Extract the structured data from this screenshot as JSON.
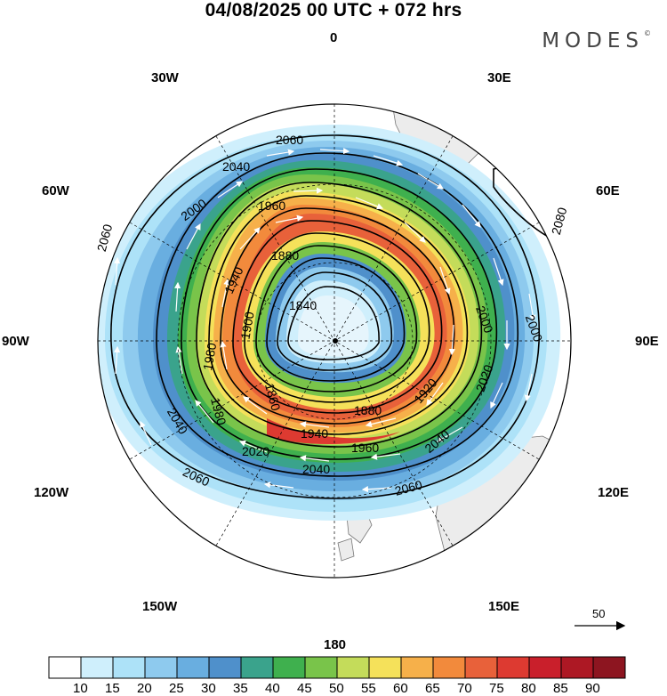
{
  "header": {
    "title": "04/08/2025  00 UTC  + 072 hrs",
    "brand": "MODES",
    "brand_mark": "©"
  },
  "lon_labels": {
    "top": "0",
    "bottom": "180",
    "left": "90W",
    "right": "90E",
    "w30": "30W",
    "e30": "30E",
    "w60": "60W",
    "e60": "60E",
    "w120": "120W",
    "e120": "120E",
    "w150": "150W",
    "e150": "150E"
  },
  "contour_labels": [
    "2060",
    "2040",
    "2000",
    "1960",
    "1940",
    "1880",
    "1840",
    "1900",
    "1980",
    "1980",
    "2060",
    "2040",
    "2020",
    "2040",
    "1940",
    "1960",
    "1880",
    "1920",
    "1860",
    "2020",
    "2000",
    "2060",
    "2080",
    "2000",
    "2060",
    "2040"
  ],
  "wind_reference": {
    "label": "50"
  },
  "colorbar": {
    "ticks": [
      "10",
      "15",
      "20",
      "25",
      "30",
      "35",
      "40",
      "45",
      "50",
      "55",
      "60",
      "65",
      "70",
      "75",
      "80",
      "85",
      "90"
    ],
    "colors": [
      "#ffffff",
      "#cfeffc",
      "#ade2f8",
      "#8ecaee",
      "#69aee0",
      "#4f90cb",
      "#3aa38c",
      "#3fb04e",
      "#79c44a",
      "#c4dc5a",
      "#f5e15a",
      "#f6b04a",
      "#f28a3c",
      "#e8613a",
      "#dd3a31",
      "#c91f2b",
      "#ad1824",
      "#8d1520"
    ]
  },
  "colors": {
    "ocean_bg": "#ffffff",
    "land": "#ececec",
    "grid": "#000000",
    "contour": "#000000",
    "wind_arrow": "#ffffff"
  },
  "icons": [
    "pole-center-dot-icon",
    "wind-reference-arrow-icon"
  ]
}
